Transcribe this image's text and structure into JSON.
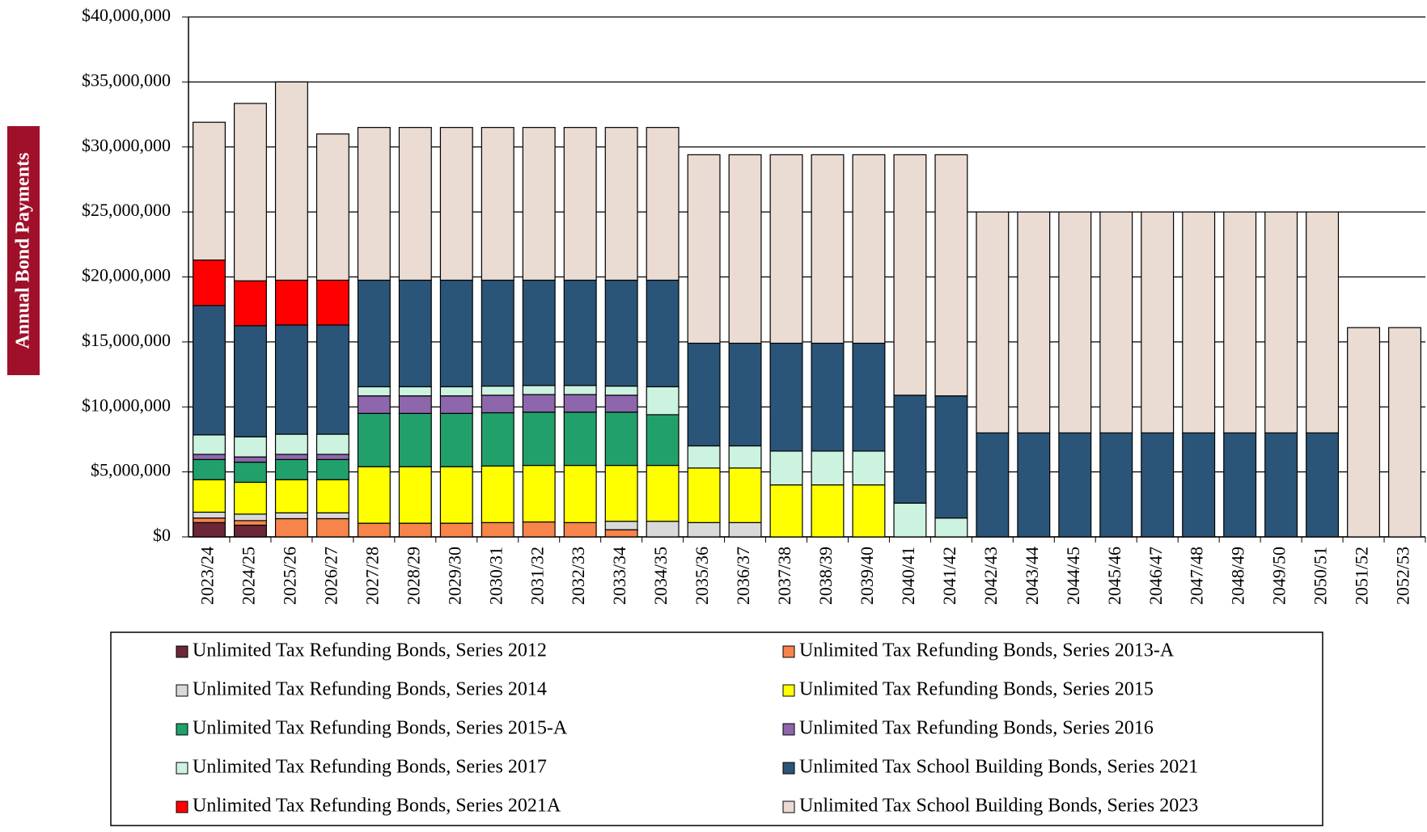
{
  "chart_data": {
    "type": "stacked-bar",
    "y_label": "Annual Bond Payments",
    "categories": [
      "2023/24",
      "2024/25",
      "2025/26",
      "2026/27",
      "2027/28",
      "2028/29",
      "2029/30",
      "2030/31",
      "2031/32",
      "2032/33",
      "2033/34",
      "2034/35",
      "2035/36",
      "2036/37",
      "2037/38",
      "2038/39",
      "2039/40",
      "2040/41",
      "2041/42",
      "2042/43",
      "2043/44",
      "2044/45",
      "2045/46",
      "2046/47",
      "2047/48",
      "2048/49",
      "2049/50",
      "2050/51",
      "2051/52",
      "2052/53"
    ],
    "series": [
      {
        "name": "Unlimited Tax Refunding Bonds, Series 2012",
        "color": "#6b2737",
        "values": [
          1100000,
          900000,
          0,
          0,
          0,
          0,
          0,
          0,
          0,
          0,
          0,
          0,
          0,
          0,
          0,
          0,
          0,
          0,
          0,
          0,
          0,
          0,
          0,
          0,
          0,
          0,
          0,
          0,
          0,
          0
        ]
      },
      {
        "name": "Unlimited Tax Refunding Bonds, Series 2013-A",
        "color": "#f7844a",
        "values": [
          350000,
          350000,
          1400000,
          1400000,
          1050000,
          1050000,
          1050000,
          1100000,
          1150000,
          1100000,
          550000,
          0,
          0,
          0,
          0,
          0,
          0,
          0,
          0,
          0,
          0,
          0,
          0,
          0,
          0,
          0,
          0,
          0,
          0,
          0
        ]
      },
      {
        "name": "Unlimited Tax Refunding Bonds, Series 2014",
        "color": "#d9d9d9",
        "values": [
          450000,
          500000,
          450000,
          450000,
          0,
          0,
          0,
          0,
          0,
          0,
          650000,
          1200000,
          1100000,
          1100000,
          0,
          0,
          0,
          0,
          0,
          0,
          0,
          0,
          0,
          0,
          0,
          0,
          0,
          0,
          0,
          0
        ]
      },
      {
        "name": "Unlimited Tax Refunding Bonds, Series 2015",
        "color": "#ffff00",
        "values": [
          2500000,
          2450000,
          2550000,
          2550000,
          4350000,
          4350000,
          4350000,
          4350000,
          4350000,
          4400000,
          4300000,
          4300000,
          4200000,
          4200000,
          4000000,
          4000000,
          4000000,
          0,
          0,
          0,
          0,
          0,
          0,
          0,
          0,
          0,
          0,
          0,
          0,
          0
        ]
      },
      {
        "name": "Unlimited Tax Refunding Bonds, Series 2015-A",
        "color": "#22a06b",
        "values": [
          1550000,
          1550000,
          1550000,
          1550000,
          4100000,
          4100000,
          4100000,
          4100000,
          4100000,
          4100000,
          4100000,
          3900000,
          0,
          0,
          0,
          0,
          0,
          0,
          0,
          0,
          0,
          0,
          0,
          0,
          0,
          0,
          0,
          0,
          0,
          0
        ]
      },
      {
        "name": "Unlimited Tax Refunding Bonds, Series 2016",
        "color": "#8e66ac",
        "values": [
          400000,
          400000,
          400000,
          400000,
          1350000,
          1350000,
          1350000,
          1350000,
          1350000,
          1350000,
          1300000,
          0,
          0,
          0,
          0,
          0,
          0,
          0,
          0,
          0,
          0,
          0,
          0,
          0,
          0,
          0,
          0,
          0,
          0,
          0
        ]
      },
      {
        "name": "Unlimited Tax Refunding Bonds, Series 2017",
        "color": "#ccf2e0",
        "values": [
          1500000,
          1550000,
          1550000,
          1550000,
          700000,
          700000,
          700000,
          700000,
          700000,
          700000,
          700000,
          2150000,
          1700000,
          1700000,
          2600000,
          2600000,
          2600000,
          2600000,
          1450000,
          0,
          0,
          0,
          0,
          0,
          0,
          0,
          0,
          0,
          0,
          0
        ]
      },
      {
        "name": "Unlimited Tax School Building Bonds, Series 2021",
        "color": "#2a5578",
        "values": [
          9950000,
          8550000,
          8400000,
          8400000,
          8200000,
          8200000,
          8200000,
          8150000,
          8100000,
          8100000,
          8150000,
          8200000,
          7900000,
          7900000,
          8300000,
          8300000,
          8300000,
          8300000,
          9400000,
          8000000,
          8000000,
          8000000,
          8000000,
          8000000,
          8000000,
          8000000,
          8000000,
          8000000,
          0,
          0
        ]
      },
      {
        "name": "Unlimited Tax Refunding Bonds, Series 2021A",
        "color": "#ff0000",
        "values": [
          3500000,
          3450000,
          3450000,
          3450000,
          0,
          0,
          0,
          0,
          0,
          0,
          0,
          0,
          0,
          0,
          0,
          0,
          0,
          0,
          0,
          0,
          0,
          0,
          0,
          0,
          0,
          0,
          0,
          0,
          0,
          0
        ]
      },
      {
        "name": "Unlimited Tax School Building Bonds, Series 2023",
        "color": "#eadbd3",
        "values": [
          10600000,
          13650000,
          15250000,
          11250000,
          11750000,
          11750000,
          11750000,
          11750000,
          11750000,
          11750000,
          11750000,
          11750000,
          14500000,
          14500000,
          14500000,
          14500000,
          14500000,
          18500000,
          18550000,
          17000000,
          17000000,
          17000000,
          17000000,
          17000000,
          17000000,
          17000000,
          17000000,
          17000000,
          16100000,
          16100000
        ]
      }
    ],
    "ylim": [
      0,
      40000000
    ],
    "yticks": [
      {
        "value": 0,
        "label": "$0"
      },
      {
        "value": 5000000,
        "label": "$5,000,000"
      },
      {
        "value": 10000000,
        "label": "$10,000,000"
      },
      {
        "value": 15000000,
        "label": "$15,000,000"
      },
      {
        "value": 20000000,
        "label": "$20,000,000"
      },
      {
        "value": 25000000,
        "label": "$25,000,000"
      },
      {
        "value": 30000000,
        "label": "$30,000,000"
      },
      {
        "value": 35000000,
        "label": "$35,000,000"
      },
      {
        "value": 40000000,
        "label": "$40,000,000"
      }
    ],
    "grid": true
  }
}
